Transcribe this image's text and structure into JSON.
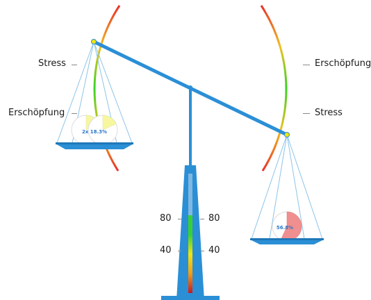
{
  "left_pan": {
    "upper_label": "Stress",
    "lower_label": "Erschöpfung",
    "pie_label": "2x 18.3%",
    "pie_fraction": 0.183,
    "pie_count": 2,
    "pie_color": "#f7f7a0"
  },
  "right_pan": {
    "upper_label": "Erschöpfung",
    "lower_label": "Stress",
    "pie_label": "56.8%",
    "pie_fraction": 0.568,
    "pie_color": "#f08f8f"
  },
  "gauge": {
    "ticks_left": [
      "80",
      "40"
    ],
    "ticks_right": [
      "80",
      "40"
    ],
    "colors": [
      "#c8171e",
      "#f39c12",
      "#f2e40c",
      "#37d12f"
    ]
  },
  "colors": {
    "beam": "#2b8fd6",
    "string": "#8cc4e8",
    "pan": "#2b8fd6"
  }
}
